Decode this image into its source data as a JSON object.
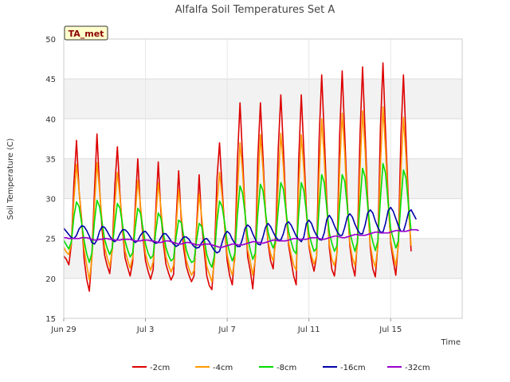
{
  "chart_data": {
    "type": "line",
    "title": "Alfalfa Soil Temperatures Set A",
    "badge": "TA_met",
    "xlabel": "Time",
    "ylabel": "Soil Temperature (C)",
    "ylim": [
      15,
      50
    ],
    "yticks": [
      15,
      20,
      25,
      30,
      35,
      40,
      45,
      50
    ],
    "xlim": [
      "2023-06-29",
      "2023-07-18T12:00"
    ],
    "xticks": [
      {
        "date": "2023-06-29",
        "label": "Jun 29"
      },
      {
        "date": "2023-07-03",
        "label": "Jul 3"
      },
      {
        "date": "2023-07-07",
        "label": "Jul 7"
      },
      {
        "date": "2023-07-11",
        "label": "Jul 11"
      },
      {
        "date": "2023-07-15",
        "label": "Jul 15"
      }
    ],
    "grid": true,
    "banded_background": true,
    "legend_position": "bottom",
    "data_start": "2023-06-29T00:00",
    "sample_step_hours": 3,
    "colors": {
      "-2cm": "#dd0000",
      "-4cm": "#ff9900",
      "-8cm": "#00dd00",
      "-16cm": "#0000aa",
      "-32cm": "#9900cc"
    },
    "series": [
      {
        "name": "-2cm",
        "color": "#dd0000",
        "values": [
          22.8,
          22.4,
          21.7,
          24.3,
          32.0,
          37.3,
          31.0,
          27.5,
          22.4,
          19.9,
          18.4,
          22.8,
          30.8,
          38.1,
          31.5,
          26.1,
          22.9,
          21.6,
          20.6,
          23.8,
          31.6,
          36.5,
          30.6,
          26.2,
          22.6,
          21.4,
          20.3,
          22.1,
          29.1,
          35.0,
          28.9,
          25.2,
          22.2,
          20.9,
          19.9,
          21.1,
          28.4,
          34.6,
          28.5,
          24.4,
          21.8,
          20.7,
          19.8,
          20.5,
          27.3,
          33.5,
          27.4,
          23.7,
          21.5,
          20.4,
          19.6,
          20.3,
          26.5,
          33.0,
          27.0,
          23.4,
          20.3,
          19.1,
          18.6,
          22.9,
          32.5,
          37.0,
          31.4,
          26.5,
          22.2,
          20.3,
          19.2,
          23.2,
          34.7,
          42.0,
          35.2,
          28.2,
          22.7,
          21.0,
          18.7,
          22.7,
          35.2,
          42.0,
          35.3,
          28.2,
          24.4,
          22.2,
          21.2,
          25.7,
          36.3,
          43.0,
          36.3,
          28.8,
          24.2,
          22.2,
          20.3,
          19.2,
          35.0,
          43.0,
          36.0,
          28.6,
          24.0,
          22.2,
          20.9,
          22.8,
          37.6,
          45.5,
          38.0,
          29.7,
          23.8,
          21.1,
          20.3,
          23.3,
          37.9,
          46.0,
          38.1,
          29.7,
          24.1,
          21.6,
          20.3,
          24.8,
          38.0,
          46.5,
          38.2,
          29.9,
          23.9,
          21.2,
          20.2,
          24.3,
          38.9,
          47.0,
          38.4,
          30.0,
          24.4,
          22.2,
          20.4,
          24.5,
          37.8,
          45.5,
          37.5,
          29.3,
          23.4
        ]
      },
      {
        "name": "-4cm",
        "color": "#ff9900",
        "values": [
          23.9,
          23.3,
          23.0,
          24.4,
          30.0,
          34.3,
          31.0,
          27.2,
          23.6,
          21.7,
          19.8,
          22.4,
          29.0,
          34.5,
          31.1,
          27.1,
          23.9,
          22.6,
          21.5,
          23.5,
          29.2,
          33.3,
          30.2,
          26.6,
          23.5,
          22.3,
          21.3,
          22.6,
          28.0,
          32.3,
          29.3,
          25.8,
          23.1,
          21.9,
          21.0,
          22.1,
          27.4,
          32.0,
          29.0,
          25.4,
          22.7,
          21.7,
          20.8,
          21.6,
          26.5,
          31.1,
          28.1,
          24.7,
          22.3,
          21.2,
          20.4,
          21.0,
          25.9,
          30.6,
          27.7,
          24.4,
          21.5,
          20.5,
          19.6,
          22.2,
          29.3,
          33.3,
          30.3,
          26.6,
          23.0,
          21.4,
          20.4,
          22.4,
          30.8,
          37.0,
          33.4,
          28.1,
          23.6,
          22.2,
          20.4,
          22.4,
          31.3,
          38.0,
          33.7,
          28.1,
          24.7,
          23.1,
          22.2,
          24.5,
          32.0,
          38.2,
          34.0,
          28.4,
          24.6,
          23.0,
          21.7,
          21.0,
          31.3,
          38.0,
          33.6,
          28.0,
          24.3,
          22.8,
          21.8,
          22.8,
          33.0,
          40.0,
          35.0,
          28.8,
          24.3,
          22.4,
          21.6,
          23.2,
          33.6,
          40.7,
          35.7,
          29.0,
          24.5,
          22.6,
          21.6,
          24.2,
          33.6,
          41.0,
          36.0,
          29.1,
          24.3,
          22.4,
          21.4,
          24.0,
          34.2,
          41.5,
          36.2,
          29.3,
          24.8,
          23.0,
          21.6,
          24.1,
          33.3,
          40.2,
          35.2,
          28.6,
          24.1
        ]
      },
      {
        "name": "-8cm",
        "color": "#00dd00",
        "values": [
          24.8,
          24.2,
          23.7,
          24.6,
          27.8,
          29.6,
          29.0,
          27.0,
          24.7,
          23.1,
          22.0,
          23.2,
          27.1,
          29.8,
          29.0,
          27.0,
          24.9,
          23.8,
          23.0,
          23.8,
          26.9,
          29.4,
          28.8,
          26.8,
          24.7,
          23.6,
          22.7,
          23.2,
          26.3,
          28.8,
          28.2,
          26.3,
          24.3,
          23.2,
          22.5,
          22.9,
          25.8,
          28.2,
          27.6,
          25.7,
          23.9,
          22.9,
          22.2,
          22.5,
          25.2,
          27.3,
          27.0,
          25.3,
          23.6,
          22.6,
          22.0,
          22.2,
          24.8,
          26.9,
          26.5,
          24.9,
          23.0,
          22.0,
          21.4,
          22.9,
          27.1,
          29.7,
          29.0,
          27.0,
          24.5,
          23.2,
          22.2,
          23.1,
          28.0,
          31.6,
          30.7,
          28.0,
          25.2,
          23.6,
          22.4,
          23.2,
          28.2,
          31.8,
          31.0,
          28.3,
          25.8,
          24.6,
          23.8,
          24.8,
          28.7,
          32.0,
          31.2,
          28.5,
          25.9,
          24.6,
          23.5,
          23.1,
          28.2,
          32.0,
          31.0,
          28.3,
          25.6,
          24.4,
          23.4,
          23.8,
          29.0,
          33.0,
          32.0,
          28.8,
          25.7,
          24.4,
          23.4,
          24.1,
          29.2,
          33.0,
          32.2,
          29.0,
          25.8,
          24.5,
          23.4,
          24.6,
          29.6,
          33.8,
          32.7,
          29.2,
          26.0,
          24.6,
          23.5,
          24.7,
          30.0,
          34.4,
          33.2,
          29.5,
          26.2,
          25.0,
          23.8,
          24.7,
          29.6,
          33.6,
          32.6,
          29.1,
          26.0
        ]
      },
      {
        "name": "-16cm",
        "color": "#0000aa",
        "values": [
          26.3,
          25.9,
          25.5,
          25.1,
          25.0,
          25.4,
          26.2,
          26.6,
          26.5,
          26.0,
          25.3,
          24.5,
          24.3,
          24.8,
          25.9,
          26.5,
          26.4,
          25.9,
          25.3,
          24.8,
          24.6,
          24.9,
          25.6,
          26.1,
          26.1,
          25.8,
          25.3,
          24.8,
          24.5,
          24.7,
          25.4,
          25.8,
          25.9,
          25.5,
          25.0,
          24.6,
          24.4,
          24.5,
          25.1,
          25.6,
          25.6,
          25.2,
          24.7,
          24.3,
          24.0,
          24.2,
          24.8,
          25.2,
          25.2,
          24.9,
          24.4,
          24.0,
          23.8,
          23.9,
          24.5,
          24.9,
          25.0,
          24.6,
          24.0,
          23.5,
          23.2,
          23.4,
          24.5,
          25.5,
          25.9,
          25.6,
          24.9,
          24.4,
          24.0,
          24.0,
          25.0,
          26.3,
          26.7,
          26.4,
          25.6,
          24.9,
          24.3,
          24.2,
          25.2,
          26.4,
          26.9,
          26.5,
          25.8,
          25.2,
          24.8,
          24.8,
          25.6,
          26.8,
          27.1,
          26.7,
          26.0,
          25.3,
          24.9,
          24.6,
          25.2,
          26.9,
          27.3,
          26.9,
          26.0,
          25.4,
          24.9,
          24.8,
          25.7,
          27.4,
          27.9,
          27.4,
          26.6,
          25.9,
          25.4,
          25.4,
          26.4,
          27.7,
          28.1,
          27.7,
          26.8,
          26.1,
          25.6,
          25.6,
          26.7,
          28.2,
          28.6,
          28.2,
          27.2,
          26.4,
          25.8,
          25.8,
          26.9,
          28.5,
          28.9,
          28.4,
          27.5,
          26.6,
          25.9,
          25.9,
          27.0,
          28.3,
          28.6,
          28.0,
          27.4
        ]
      },
      {
        "name": "-32cm",
        "color": "#9900cc",
        "values": [
          25.1,
          25.1,
          25.0,
          25.0,
          25.0,
          25.0,
          25.0,
          25.1,
          25.1,
          25.1,
          25.0,
          24.9,
          24.8,
          24.8,
          24.9,
          24.9,
          25.0,
          25.0,
          24.9,
          24.9,
          24.8,
          24.8,
          24.8,
          24.9,
          24.9,
          24.9,
          24.9,
          24.8,
          24.7,
          24.7,
          24.7,
          24.8,
          24.8,
          24.8,
          24.7,
          24.7,
          24.6,
          24.5,
          24.5,
          24.6,
          24.7,
          24.7,
          24.6,
          24.5,
          24.4,
          24.3,
          24.3,
          24.4,
          24.5,
          24.5,
          24.4,
          24.3,
          24.2,
          24.2,
          24.2,
          24.3,
          24.3,
          24.3,
          24.2,
          24.1,
          24.0,
          23.9,
          23.9,
          24.0,
          24.1,
          24.2,
          24.3,
          24.3,
          24.2,
          24.2,
          24.2,
          24.3,
          24.4,
          24.5,
          24.6,
          24.6,
          24.5,
          24.5,
          24.4,
          24.5,
          24.6,
          24.7,
          24.8,
          24.8,
          24.7,
          24.7,
          24.7,
          24.7,
          24.8,
          24.9,
          25.0,
          25.0,
          24.9,
          24.9,
          24.9,
          24.9,
          25.0,
          25.1,
          25.1,
          25.1,
          25.0,
          24.9,
          24.9,
          25.0,
          25.1,
          25.2,
          25.3,
          25.3,
          25.2,
          25.1,
          25.1,
          25.2,
          25.3,
          25.4,
          25.5,
          25.5,
          25.4,
          25.4,
          25.4,
          25.5,
          25.6,
          25.7,
          25.8,
          25.8,
          25.7,
          25.7,
          25.7,
          25.7,
          25.8,
          25.9,
          26.0,
          26.0,
          25.9,
          25.9,
          25.9,
          26.0,
          26.1,
          26.1,
          26.1,
          26.0
        ]
      }
    ]
  }
}
